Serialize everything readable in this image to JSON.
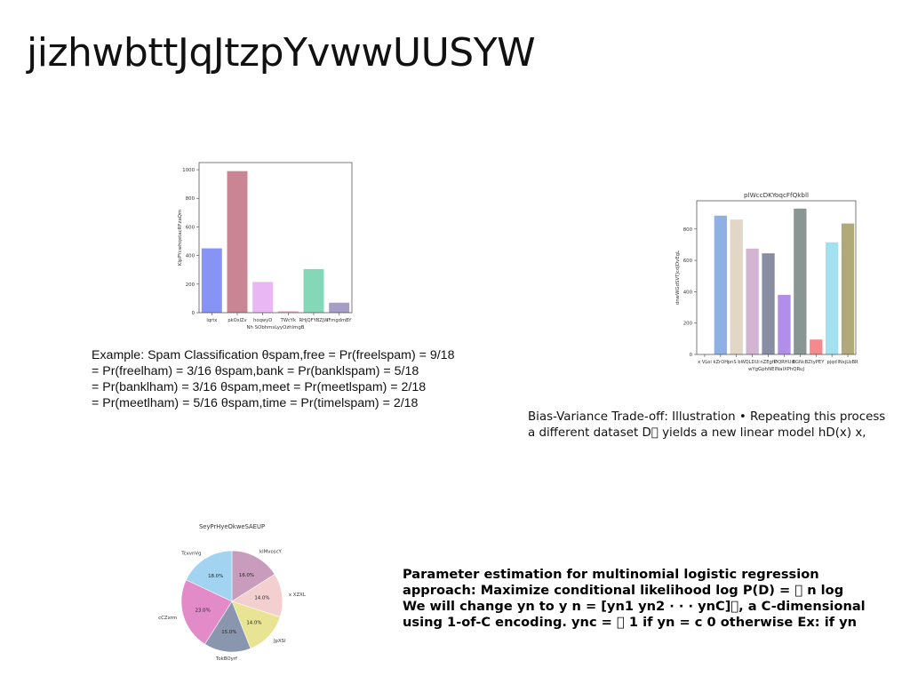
{
  "slide": {
    "title": "jizhwbttJqJtzpYvwwUUSYW",
    "text_spam": [
      "Example: Spam Classification θspam,free = Pr(freelspam) = 9/18",
      "= Pr(freelham) = 3/16 θspam,bank = Pr(banklspam) = 5/18",
      "= Pr(banklham) = 3/16 θspam,meet = Pr(meetlspam) = 2/18",
      "= Pr(meetlham) = 5/16 θspam,time = Pr(timelspam) = 2/18"
    ],
    "text_bias": [
      "Bias-Variance Trade-off: Illustration • Repeating this process",
      "a different dataset D􏰅 yields a new linear model hD(x) x,"
    ],
    "text_param": [
      "Parameter estimation for multinomial logistic regression",
      "approach: Maximize conditional likelihood log P(D) = 􏰄 n log",
      "We will change yn to y n = [yn1 yn2 · · · ynC]􏰉, a C-dimensional",
      "using 1-of-C encoding. ync = 􏰂 1 if yn = c 0 otherwise Ex: if yn"
    ]
  },
  "chart_data": [
    {
      "type": "bar",
      "title": "",
      "xlabel": "Nh SObhmsLyyOzhlmgB",
      "ylabel": "KlpPYcwhqetacRFzaQm",
      "categories": [
        "lqrtx",
        "pkOsIZv",
        "hoqwyD",
        "TWcYk",
        "RHjQFYBZjW",
        "lFmgdmBY"
      ],
      "values": [
        450,
        990,
        215,
        10,
        305,
        70
      ],
      "colors": [
        "#8894f5",
        "#c98593",
        "#e9b8f4",
        "#f0a8c8",
        "#84d8b8",
        "#a79ec8"
      ],
      "ylim": [
        0,
        1050
      ],
      "yticks": [
        0,
        200,
        400,
        600,
        800,
        1000
      ]
    },
    {
      "type": "bar",
      "title": "plWccDKYoqcFfQkbll",
      "xlabel": "wYgGphNEINalXPhQRuJ",
      "ylabel": "dnwWGdSVTJcdJDvEgL",
      "categories": [
        "x VLoi",
        "kZrOH",
        "pnS bW",
        "QLDUi",
        "nZEgfP",
        "DQRHUd",
        "BGNcB",
        "ZtyPEY",
        "pjqd",
        "lNxjLbBR"
      ],
      "values": [
        0,
        885,
        860,
        675,
        645,
        380,
        930,
        95,
        715,
        835
      ],
      "colors": [
        "#ffffff",
        "#8fb0e3",
        "#e2d6c6",
        "#d3b4d3",
        "#8a8ea3",
        "#b28ee8",
        "#8a9694",
        "#f58a8e",
        "#a3e1f0",
        "#b0aa7a"
      ],
      "ylim": [
        0,
        980
      ],
      "yticks": [
        0,
        200,
        400,
        600,
        800
      ]
    },
    {
      "type": "pie",
      "title": "SeyPrHyeOkweSAEUP",
      "labels": [
        "klMvoscY",
        "x XZXL",
        "JpXSl",
        "TokBOyrf",
        "cCZxrm",
        "TcxvnVg"
      ],
      "values": [
        16.0,
        14.0,
        14.0,
        15.0,
        23.0,
        18.0
      ],
      "colors": [
        "#c99bbd",
        "#f4cfcf",
        "#e8e494",
        "#8a96ad",
        "#e38ac8",
        "#a2d4f2"
      ]
    }
  ]
}
